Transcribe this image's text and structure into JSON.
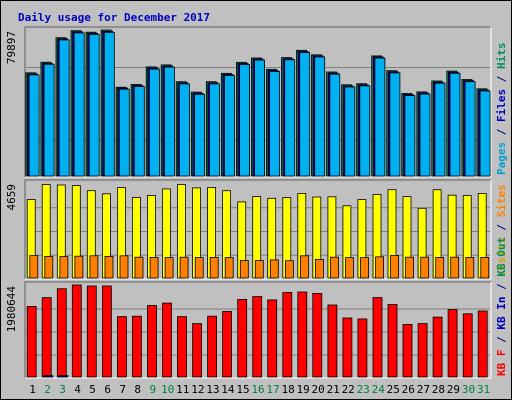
{
  "chart_data": {
    "type": "bar",
    "title": "Daily usage for December 2017",
    "categories": [
      "1",
      "2",
      "3",
      "4",
      "5",
      "6",
      "7",
      "8",
      "9",
      "10",
      "11",
      "12",
      "13",
      "14",
      "15",
      "16",
      "17",
      "18",
      "19",
      "20",
      "21",
      "22",
      "23",
      "24",
      "25",
      "26",
      "27",
      "28",
      "29",
      "30",
      "31"
    ],
    "weekend_days": [
      "2",
      "3",
      "9",
      "10",
      "16",
      "17",
      "23",
      "24",
      "30",
      "31"
    ],
    "panels": [
      {
        "id": "top",
        "max_label": "79897",
        "ymax": 79897,
        "right_labels": [
          {
            "text": "Pages",
            "color": "#00a0d0"
          },
          {
            "text": " / ",
            "color": "#000080"
          },
          {
            "text": "Files",
            "color": "#0000c0"
          },
          {
            "text": " / ",
            "color": "#000080"
          },
          {
            "text": "Hits",
            "color": "#009060"
          }
        ],
        "series": [
          {
            "name": "Hits",
            "color": "#009060",
            "values": [
              56500,
              62300,
              75700,
              79500,
              78700,
              79897,
              48600,
              50100,
              59700,
              60800,
              51600,
              45900,
              51600,
              56200,
              62200,
              64600,
              58400,
              64800,
              68800,
              66300,
              56900,
              49900,
              50500,
              65700,
              57600,
              45200,
              46000,
              52000,
              57400,
              52800,
              47700
            ]
          },
          {
            "name": "Files",
            "color": "#0000c0",
            "values": [
              55900,
              61700,
              75100,
              78900,
              78100,
              79200,
              48100,
              49500,
              59100,
              60200,
              51000,
              45300,
              51000,
              55600,
              61600,
              64000,
              57800,
              64200,
              68200,
              65700,
              56300,
              49300,
              49900,
              65100,
              57000,
              44600,
              45400,
              51400,
              56800,
              52200,
              47100
            ]
          },
          {
            "name": "Pages",
            "color": "#00b0f0",
            "values": [
              55300,
              61100,
              74500,
              78300,
              77500,
              78600,
              47500,
              48900,
              58500,
              59600,
              50400,
              44700,
              50400,
              55000,
              61000,
              63400,
              57200,
              63600,
              67600,
              65100,
              55700,
              48700,
              49300,
              64500,
              56400,
              44000,
              44800,
              50800,
              56200,
              51600,
              46500
            ]
          }
        ]
      },
      {
        "id": "mid",
        "max_label": "4659",
        "ymax": 4659,
        "right_labels": [
          {
            "text": "Visits",
            "color": "#e0a000"
          },
          {
            "text": " / ",
            "color": "#000080"
          },
          {
            "text": "Sites",
            "color": "#ff8000"
          }
        ],
        "series": [
          {
            "name": "Visits",
            "color": "#ffff00",
            "values": [
              3850,
              4580,
              4560,
              4530,
              4280,
              4130,
              4440,
              3950,
              4050,
              4370,
              4580,
              4420,
              4440,
              4280,
              3730,
              3990,
              3910,
              3950,
              4150,
              3970,
              3980,
              3540,
              3850,
              4100,
              4330,
              3990,
              3420,
              4330,
              4060,
              4040,
              4150
            ]
          },
          {
            "name": "Sites",
            "color": "#ff8000",
            "values": [
              1100,
              1060,
              1050,
              1070,
              1090,
              1060,
              1090,
              1020,
              1010,
              1000,
              1020,
              1000,
              1010,
              1000,
              860,
              860,
              890,
              850,
              1090,
              910,
              1020,
              1000,
              1000,
              1040,
              1110,
              1020,
              1020,
              1010,
              1020,
              1010,
              1010
            ]
          }
        ]
      },
      {
        "id": "bot",
        "max_label": "1980644",
        "ymax": 1980644,
        "right_labels": [
          {
            "text": "KB F",
            "color": "#ff0000"
          },
          {
            "text": " / ",
            "color": "#000080"
          },
          {
            "text": "KB In",
            "color": "#0000c0"
          },
          {
            "text": " / ",
            "color": "#000080"
          },
          {
            "text": "KB Out",
            "color": "#009060"
          }
        ],
        "series": [
          {
            "name": "KB F",
            "color": "#ff0000",
            "values": [
              1520000,
              1710000,
              1900000,
              1980644,
              1960000,
              1960000,
              1300000,
              1310000,
              1540000,
              1590000,
              1300000,
              1150000,
              1310000,
              1410000,
              1670000,
              1730000,
              1660000,
              1820000,
              1830000,
              1800000,
              1550000,
              1270000,
              1250000,
              1710000,
              1560000,
              1130000,
              1150000,
              1290000,
              1450000,
              1360000,
              1420000
            ]
          },
          {
            "name": "KB In",
            "color": "#0000c0",
            "values": [
              0,
              30000,
              30000,
              0,
              0,
              0,
              0,
              0,
              0,
              0,
              0,
              0,
              0,
              0,
              0,
              0,
              0,
              0,
              0,
              0,
              0,
              0,
              0,
              0,
              0,
              0,
              0,
              0,
              0,
              0,
              0
            ]
          }
        ]
      }
    ]
  }
}
